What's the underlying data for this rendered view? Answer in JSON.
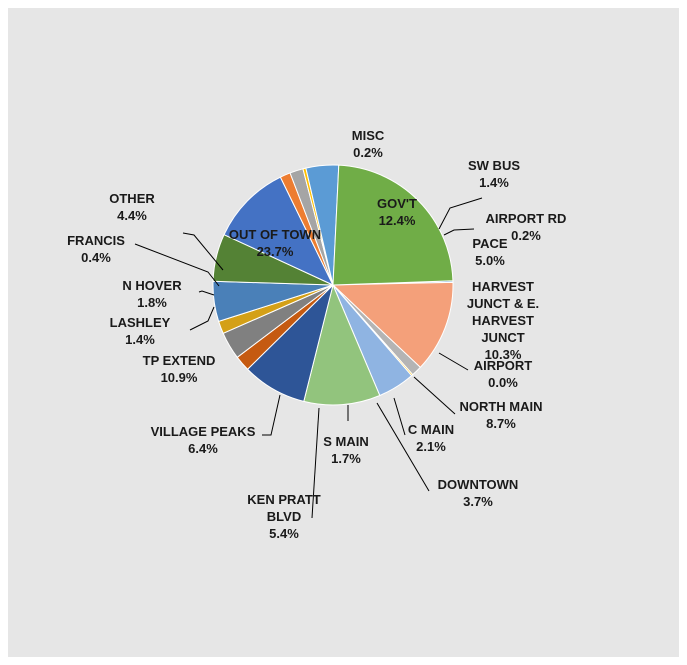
{
  "chart_data": {
    "type": "pie",
    "title": "",
    "colors": {
      "leader_line": "#000000",
      "slice_border": "#ffffff",
      "background": "#e6e6e6"
    },
    "slices": [
      {
        "name": "MISC",
        "value_label": "0.2%",
        "value": 0.2,
        "color": "#5b9bd5"
      },
      {
        "name": "GOV'T",
        "value_label": "12.4%",
        "value": 12.4,
        "color": "#f4a07a"
      },
      {
        "name": "SW BUS",
        "value_label": "1.4%",
        "value": 1.4,
        "color": "#b4b4b4"
      },
      {
        "name": "AIRPORT RD",
        "value_label": "0.2%",
        "value": 0.2,
        "color": "#ffc000"
      },
      {
        "name": "PACE",
        "value_label": "5.0%",
        "value": 5.0,
        "color": "#8fb4e2"
      },
      {
        "name": "HARVEST JUNCT & E. HARVEST JUNCT",
        "value_label": "10.3%",
        "value": 10.3,
        "color": "#92c47d"
      },
      {
        "name": "AIRPORT",
        "value_label": "0.0%",
        "value": 0.0,
        "color": "#1f3864"
      },
      {
        "name": "NORTH MAIN",
        "value_label": "8.7%",
        "value": 8.7,
        "color": "#2e5597"
      },
      {
        "name": "C MAIN",
        "value_label": "2.1%",
        "value": 2.1,
        "color": "#c55a11"
      },
      {
        "name": "DOWNTOWN",
        "value_label": "3.7%",
        "value": 3.7,
        "color": "#808080"
      },
      {
        "name": "S MAIN",
        "value_label": "1.7%",
        "value": 1.7,
        "color": "#d4a017"
      },
      {
        "name": "KEN PRATT BLVD",
        "value_label": "5.4%",
        "value": 5.4,
        "color": "#4a80b8"
      },
      {
        "name": "VILLAGE PEAKS",
        "value_label": "6.4%",
        "value": 6.4,
        "color": "#548235"
      },
      {
        "name": "TP EXTEND",
        "value_label": "10.9%",
        "value": 10.9,
        "color": "#4472c4"
      },
      {
        "name": "LASHLEY",
        "value_label": "1.4%",
        "value": 1.4,
        "color": "#ed7d31"
      },
      {
        "name": "N HOVER",
        "value_label": "1.8%",
        "value": 1.8,
        "color": "#a5a5a5"
      },
      {
        "name": "FRANCIS",
        "value_label": "0.4%",
        "value": 0.4,
        "color": "#ffc000"
      },
      {
        "name": "OTHER",
        "value_label": "4.4%",
        "value": 4.4,
        "color": "#5b9bd5"
      },
      {
        "name": "OUT OF TOWN",
        "value_label": "23.7%",
        "value": 23.7,
        "color": "#70ad47"
      }
    ]
  }
}
